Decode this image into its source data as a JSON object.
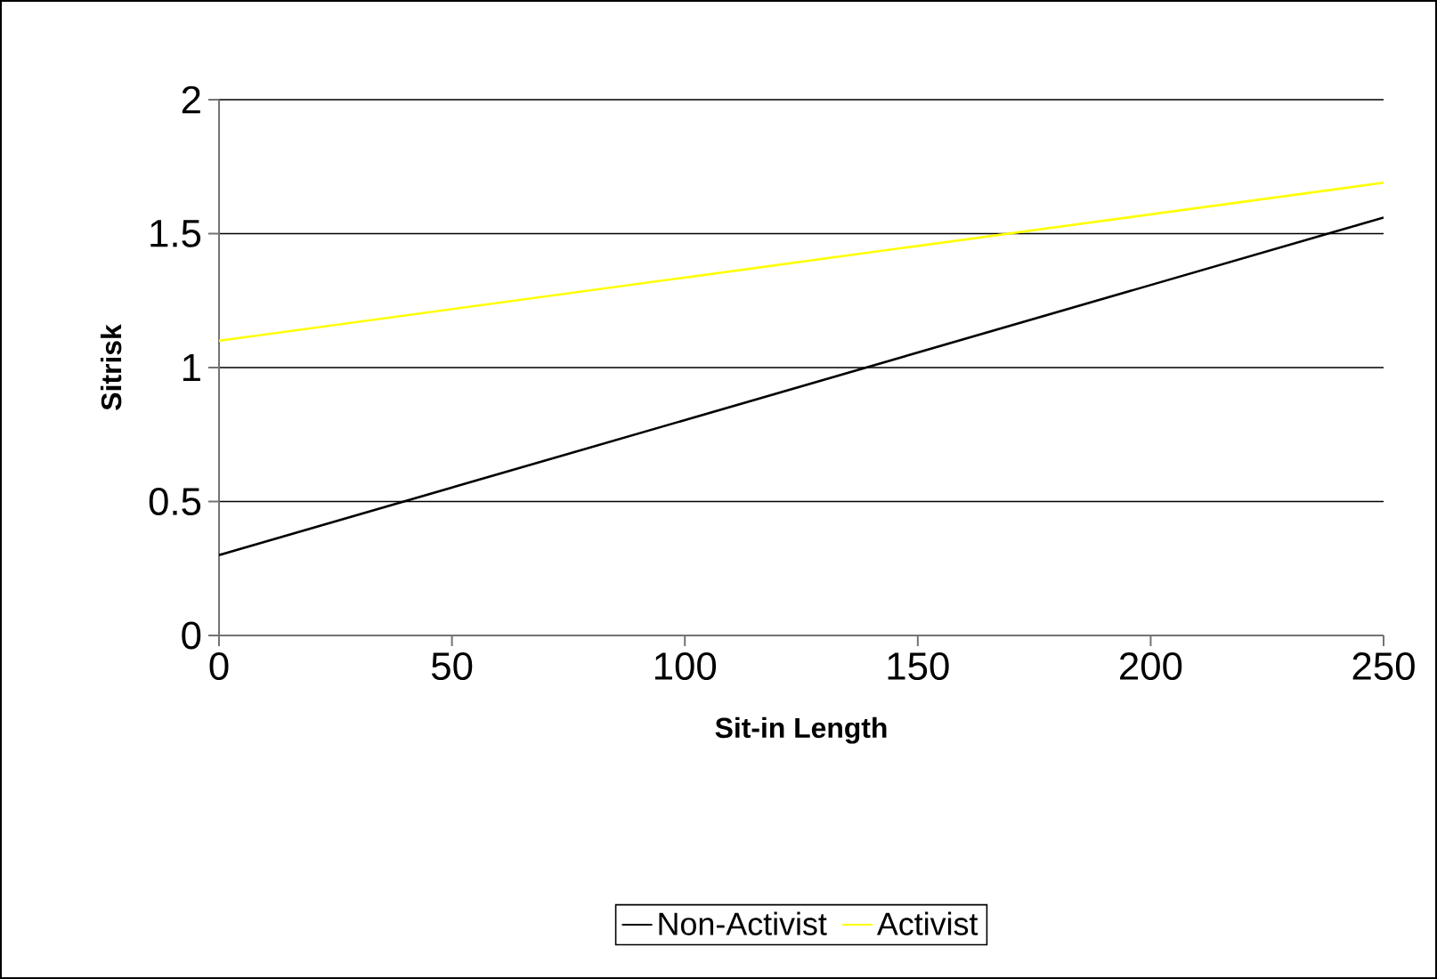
{
  "chart_data": {
    "type": "line",
    "xlabel": "Sit-in Length",
    "ylabel": "Sitrisk",
    "x": [
      0,
      250
    ],
    "series": [
      {
        "name": "Non-Activist",
        "color": "#000000",
        "values": [
          0.3,
          1.56
        ]
      },
      {
        "name": "Activist",
        "color": "#ffff00",
        "values": [
          1.1,
          1.69
        ]
      }
    ],
    "xlim": [
      0,
      250
    ],
    "xticks": [
      0,
      50,
      100,
      150,
      200,
      250
    ],
    "ylim": [
      0,
      2
    ],
    "yticks": [
      0,
      0.5,
      1,
      1.5,
      2
    ],
    "grid": "y",
    "legend": "bottom",
    "marker": "none",
    "line_style": "solid"
  }
}
